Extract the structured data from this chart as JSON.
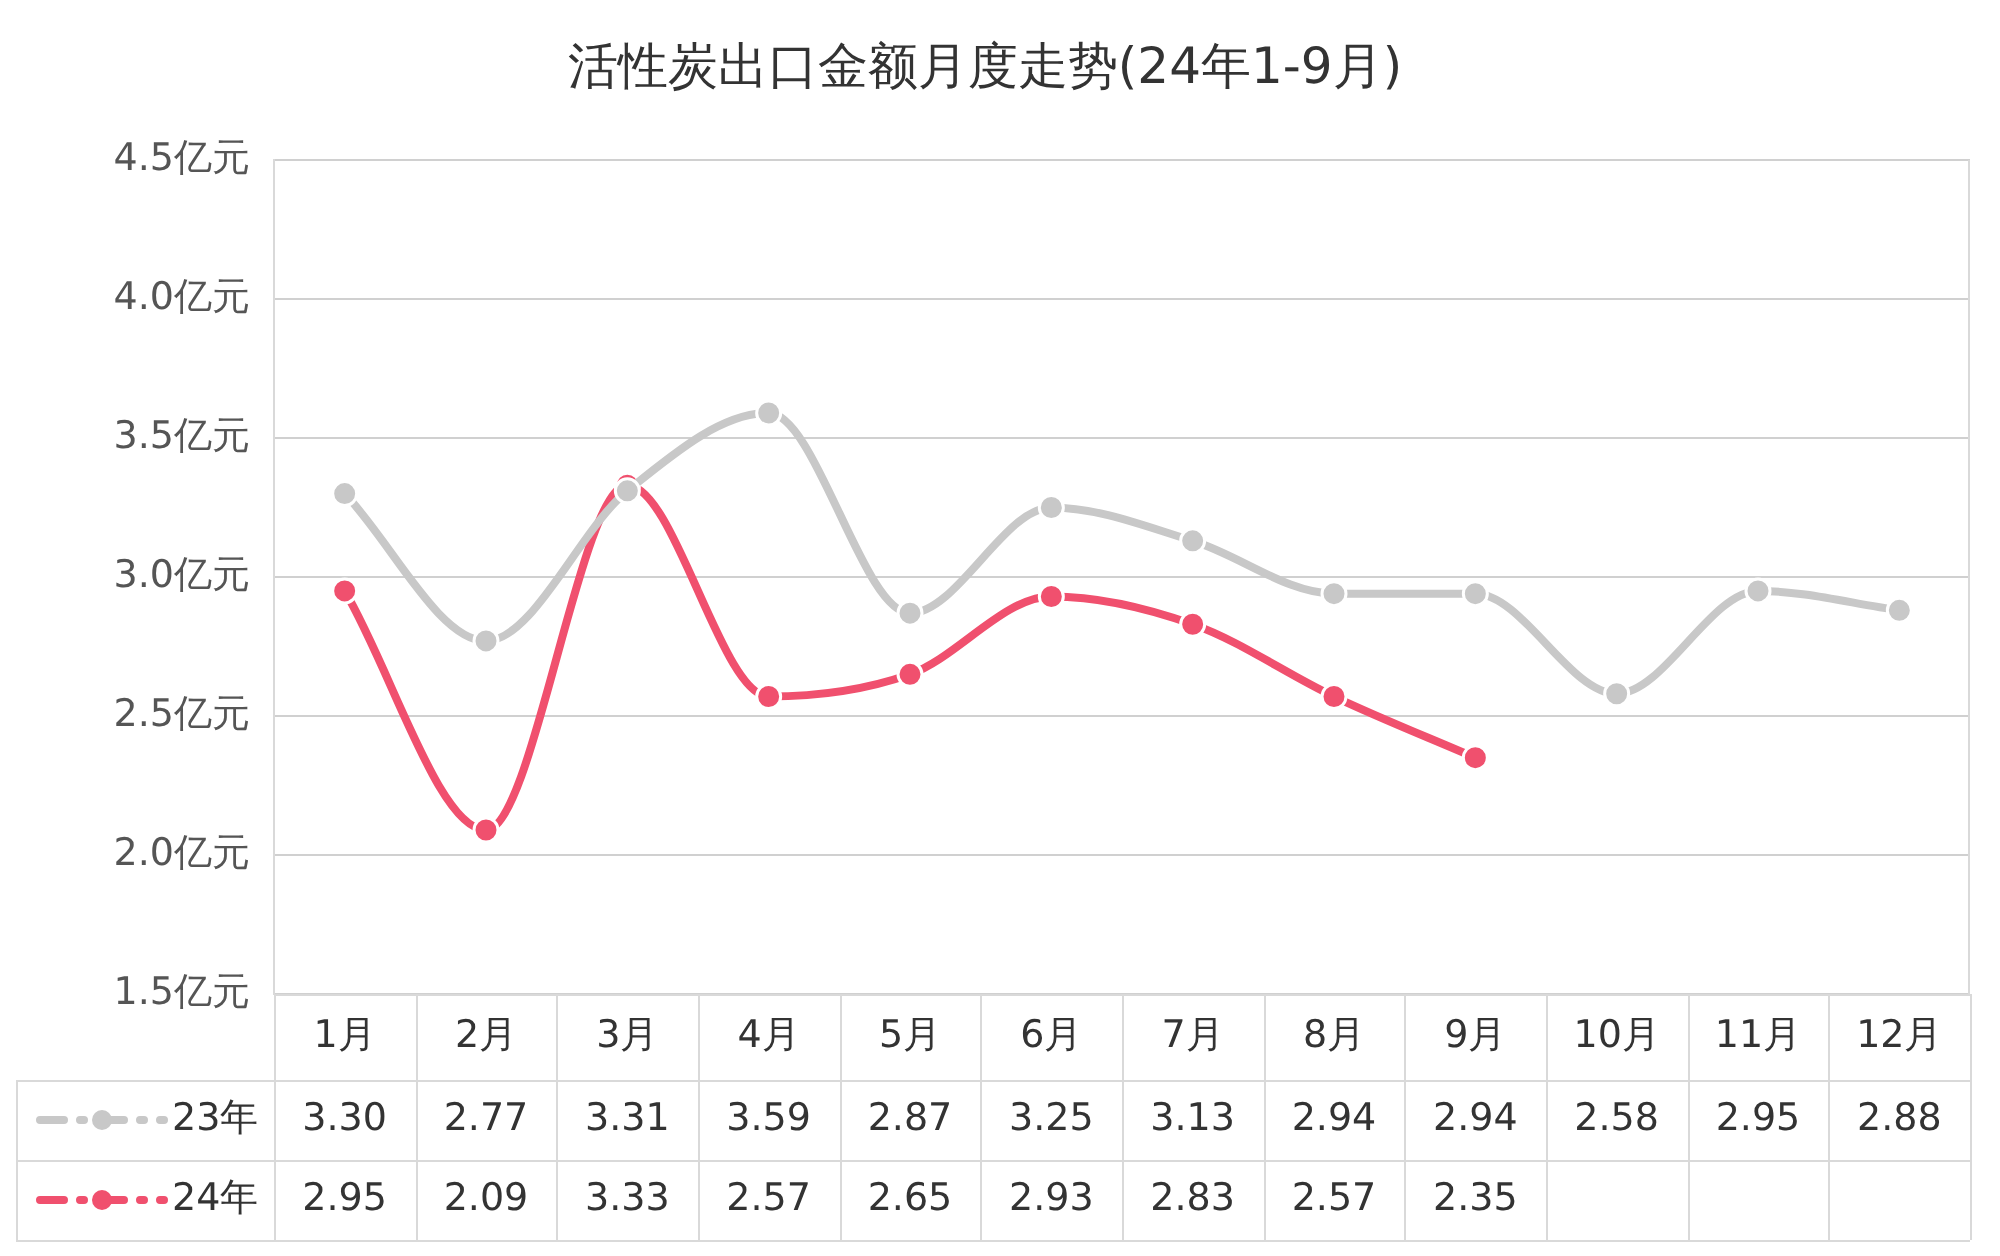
{
  "chart_data": {
    "type": "line",
    "title": "活性炭出口金额月度走势(24年1-9月)",
    "categories": [
      "1月",
      "2月",
      "3月",
      "4月",
      "5月",
      "6月",
      "7月",
      "8月",
      "9月",
      "10月",
      "11月",
      "12月"
    ],
    "series": [
      {
        "name": "23年",
        "color": "#c8c8c8",
        "values": [
          3.3,
          2.77,
          3.31,
          3.59,
          2.87,
          3.25,
          3.13,
          2.94,
          2.94,
          2.58,
          2.95,
          2.88
        ],
        "value_labels": [
          "3.30",
          "2.77",
          "3.31",
          "3.59",
          "2.87",
          "3.25",
          "3.13",
          "2.94",
          "2.94",
          "2.58",
          "2.95",
          "2.88"
        ]
      },
      {
        "name": "24年",
        "color": "#f0506e",
        "values": [
          2.95,
          2.09,
          3.33,
          2.57,
          2.65,
          2.93,
          2.83,
          2.57,
          2.35,
          null,
          null,
          null
        ],
        "value_labels": [
          "2.95",
          "2.09",
          "3.33",
          "2.57",
          "2.65",
          "2.93",
          "2.83",
          "2.57",
          "2.35",
          null,
          null,
          null
        ]
      }
    ],
    "ylim": [
      1.5,
      4.5
    ],
    "yticks": [
      {
        "value": 1.5,
        "label": "1.5亿元"
      },
      {
        "value": 2.0,
        "label": "2.0亿元"
      },
      {
        "value": 2.5,
        "label": "2.5亿元"
      },
      {
        "value": 3.0,
        "label": "3.0亿元"
      },
      {
        "value": 3.5,
        "label": "3.5亿元"
      },
      {
        "value": 4.0,
        "label": "4.0亿元"
      },
      {
        "value": 4.5,
        "label": "4.5亿元"
      }
    ],
    "grid": "y",
    "legend": "bottom",
    "marker": "circle",
    "line_style": "solid"
  }
}
